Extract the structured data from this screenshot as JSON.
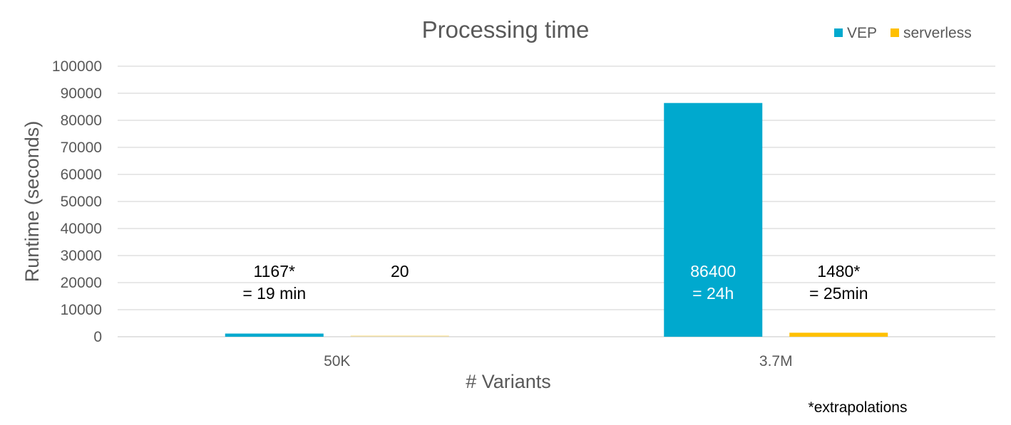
{
  "chart_data": {
    "type": "bar",
    "title": "Processing time",
    "xlabel": "# Variants",
    "ylabel": "Runtime (seconds)",
    "categories": [
      "50K",
      "3.7M"
    ],
    "series": [
      {
        "name": "VEP",
        "color": "#00A9CE",
        "values": [
          1167,
          86400
        ]
      },
      {
        "name": "serverless",
        "color": "#FFC000",
        "values": [
          20,
          1480
        ]
      }
    ],
    "ylim": [
      0,
      100000
    ],
    "yticks": [
      0,
      10000,
      20000,
      30000,
      40000,
      50000,
      60000,
      70000,
      80000,
      90000,
      100000
    ],
    "grid": true,
    "legend_position": "top-right",
    "data_labels": [
      [
        "1167*\n= 19 min",
        "86400\n= 24h"
      ],
      [
        "20",
        "1480*\n= 25min"
      ]
    ],
    "footnote": "*extrapolations"
  }
}
